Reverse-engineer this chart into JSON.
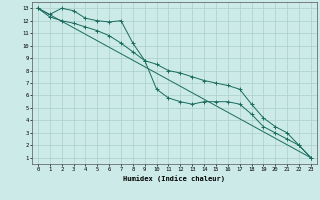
{
  "xlabel": "Humidex (Indice chaleur)",
  "background_color": "#cceae8",
  "grid_color": "#aad0cc",
  "line_color": "#1a6b5e",
  "line1_x": [
    0,
    1,
    2,
    3,
    4,
    5,
    6,
    7,
    8,
    9,
    10,
    11,
    12,
    13,
    14,
    15,
    16,
    17,
    18,
    19,
    20,
    21,
    22,
    23
  ],
  "line1_y": [
    13,
    12.5,
    13.0,
    12.8,
    12.2,
    12.0,
    11.9,
    12.0,
    10.2,
    8.8,
    6.5,
    5.8,
    5.5,
    5.3,
    5.5,
    5.5,
    5.5,
    5.3,
    4.5,
    3.5,
    3.0,
    2.5,
    2.0,
    1.0
  ],
  "line2_x": [
    0,
    1,
    2,
    3,
    4,
    5,
    6,
    7,
    8,
    9,
    10,
    11,
    12,
    13,
    14,
    15,
    16,
    17,
    18,
    19,
    20,
    21,
    22,
    23
  ],
  "line2_y": [
    13,
    12.3,
    12.0,
    11.8,
    11.5,
    11.2,
    10.8,
    10.2,
    9.5,
    8.8,
    8.5,
    8.0,
    7.8,
    7.5,
    7.2,
    7.0,
    6.8,
    6.5,
    5.3,
    4.2,
    3.5,
    3.0,
    2.0,
    1.0
  ],
  "line3_x": [
    0,
    23
  ],
  "line3_y": [
    13,
    1.0
  ],
  "xlim": [
    -0.5,
    23.5
  ],
  "ylim": [
    0.5,
    13.5
  ],
  "xticks": [
    0,
    1,
    2,
    3,
    4,
    5,
    6,
    7,
    8,
    9,
    10,
    11,
    12,
    13,
    14,
    15,
    16,
    17,
    18,
    19,
    20,
    21,
    22,
    23
  ],
  "yticks": [
    1,
    2,
    3,
    4,
    5,
    6,
    7,
    8,
    9,
    10,
    11,
    12,
    13
  ]
}
